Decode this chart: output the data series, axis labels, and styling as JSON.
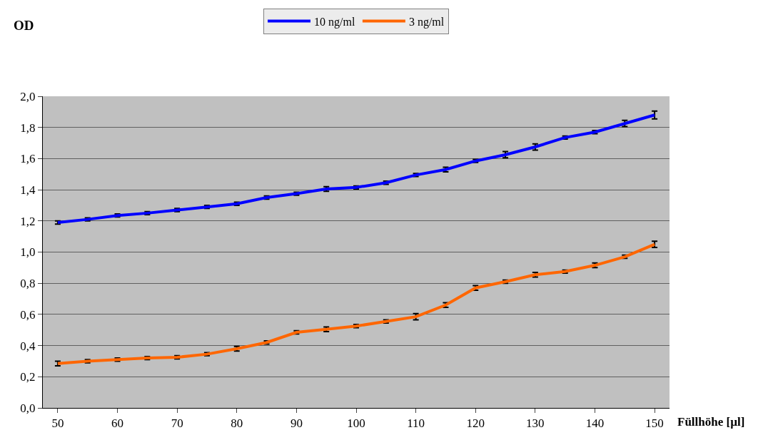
{
  "chart_data": {
    "type": "line",
    "xlabel": "Füllhöhe [µl]",
    "ylabel": "OD",
    "categories": [
      "50",
      null,
      "60",
      null,
      "70",
      null,
      "80",
      null,
      "90",
      null,
      "100",
      null,
      "110",
      null,
      "120",
      null,
      "130",
      null,
      "140",
      null,
      "150"
    ],
    "series": [
      {
        "name": "10 ng/ml",
        "color": "#0000ff",
        "values": [
          1.19,
          1.21,
          1.235,
          1.25,
          1.27,
          1.29,
          1.31,
          1.35,
          1.375,
          1.405,
          1.415,
          1.445,
          1.495,
          1.53,
          1.585,
          1.625,
          1.675,
          1.735,
          1.77,
          1.825,
          1.88
        ],
        "errors": [
          0.01,
          0.01,
          0.01,
          0.01,
          0.01,
          0.01,
          0.01,
          0.01,
          0.01,
          0.015,
          0.01,
          0.01,
          0.01,
          0.015,
          0.01,
          0.02,
          0.02,
          0.01,
          0.01,
          0.02,
          0.025
        ]
      },
      {
        "name": "3 ng/ml",
        "color": "#ff6600",
        "values": [
          0.285,
          0.3,
          0.31,
          0.32,
          0.325,
          0.345,
          0.38,
          0.42,
          0.485,
          0.505,
          0.525,
          0.555,
          0.585,
          0.66,
          0.77,
          0.81,
          0.855,
          0.875,
          0.915,
          0.97,
          1.05
        ],
        "errors": [
          0.015,
          0.01,
          0.01,
          0.01,
          0.01,
          0.01,
          0.015,
          0.01,
          0.01,
          0.015,
          0.01,
          0.01,
          0.02,
          0.015,
          0.015,
          0.01,
          0.015,
          0.01,
          0.015,
          0.01,
          0.02
        ]
      }
    ],
    "ylim": [
      0,
      2
    ],
    "yticks": [
      {
        "value": 0,
        "label": "0,0"
      },
      {
        "value": 0.2,
        "label": "0,2"
      },
      {
        "value": 0.4,
        "label": "0,4"
      },
      {
        "value": 0.6,
        "label": "0,6"
      },
      {
        "value": 0.8,
        "label": "0,8"
      },
      {
        "value": 1.0,
        "label": "1,0"
      },
      {
        "value": 1.2,
        "label": "1,2"
      },
      {
        "value": 1.4,
        "label": "1,4"
      },
      {
        "value": 1.6,
        "label": "1,6"
      },
      {
        "value": 1.8,
        "label": "1,8"
      },
      {
        "value": 2.0,
        "label": "2,0"
      }
    ],
    "grid": "y",
    "legend": "top",
    "marker": "none",
    "line_style": "solid"
  }
}
